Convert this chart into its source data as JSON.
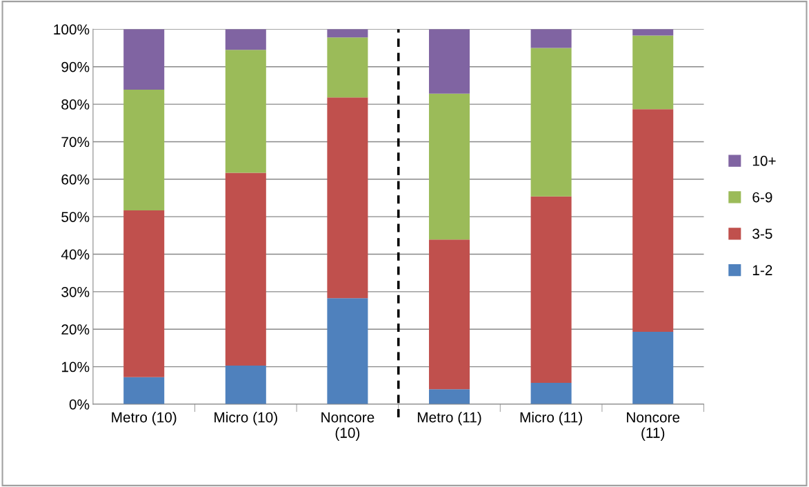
{
  "chart_data": {
    "type": "bar",
    "stacked": true,
    "categories": [
      "Metro (10)",
      "Micro (10)",
      "Noncore\n(10)",
      "Metro (11)",
      "Micro (11)",
      "Noncore\n(11)"
    ],
    "series": [
      {
        "name": "1-2",
        "color": "#4f81bd",
        "values": [
          7.2,
          10.3,
          28.3,
          4.0,
          5.7,
          19.3
        ]
      },
      {
        "name": "3-5",
        "color": "#c0504d",
        "values": [
          44.5,
          51.4,
          53.5,
          39.9,
          49.7,
          59.4
        ]
      },
      {
        "name": "6-9",
        "color": "#9bbb59",
        "values": [
          32.2,
          32.8,
          16.0,
          38.9,
          39.6,
          19.6
        ]
      },
      {
        "name": "10+",
        "color": "#8064a2",
        "values": [
          16.1,
          5.5,
          2.2,
          17.2,
          5.0,
          1.7
        ]
      }
    ],
    "ylim": [
      0,
      100
    ],
    "yticks": [
      {
        "value": 0,
        "label": "0%"
      },
      {
        "value": 10,
        "label": "10%"
      },
      {
        "value": 20,
        "label": "20%"
      },
      {
        "value": 30,
        "label": "30%"
      },
      {
        "value": 40,
        "label": "40%"
      },
      {
        "value": 50,
        "label": "50%"
      },
      {
        "value": 60,
        "label": "60%"
      },
      {
        "value": 70,
        "label": "70%"
      },
      {
        "value": 80,
        "label": "80%"
      },
      {
        "value": 90,
        "label": "90%"
      },
      {
        "value": 100,
        "label": "100%"
      }
    ],
    "grid": "y",
    "legend": "right"
  }
}
